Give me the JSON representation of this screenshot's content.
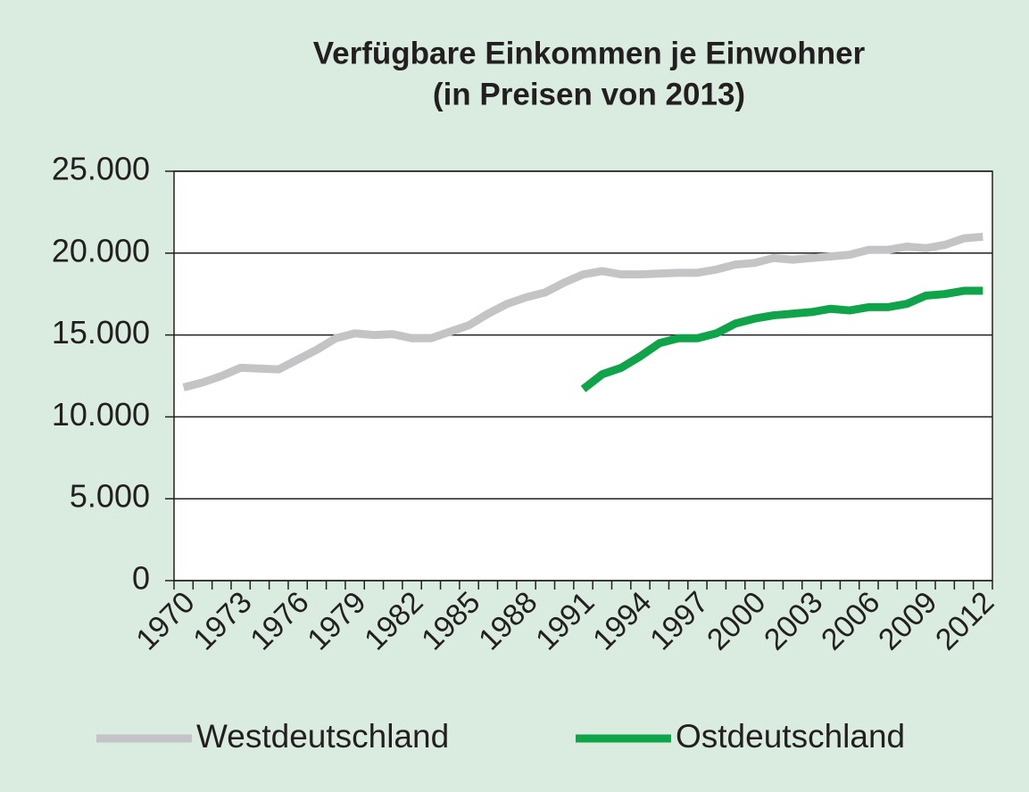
{
  "chart_data": {
    "type": "line",
    "title": "Verfügbare Einkommen je Einwohner",
    "subtitle": "(in Preisen von 2013)",
    "categories": [
      "1970",
      null,
      null,
      "1973",
      null,
      null,
      "1976",
      null,
      null,
      "1979",
      null,
      null,
      "1982",
      null,
      null,
      "1985",
      null,
      null,
      "1988",
      null,
      null,
      "1991",
      null,
      null,
      "1994",
      null,
      null,
      "1997",
      null,
      null,
      "2000",
      null,
      null,
      "2003",
      null,
      null,
      "2006",
      null,
      null,
      "2009",
      null,
      null,
      "2012"
    ],
    "series": [
      {
        "name": "Westdeutschland",
        "color": "#c4c4c6",
        "values": [
          11800,
          12100,
          12500,
          13000,
          12950,
          12900,
          13500,
          14100,
          14800,
          15100,
          15000,
          15050,
          14800,
          14800,
          15200,
          15600,
          16300,
          16900,
          17300,
          17600,
          18200,
          18700,
          18900,
          18700,
          18700,
          18750,
          18800,
          18800,
          19000,
          19300,
          19400,
          19700,
          19600,
          19700,
          19800,
          19900,
          20200,
          20200,
          20400,
          20300,
          20500,
          20900,
          21000
        ]
      },
      {
        "name": "Ostdeutschland",
        "color": "#0fa34a",
        "values": [
          null,
          null,
          null,
          null,
          null,
          null,
          null,
          null,
          null,
          null,
          null,
          null,
          null,
          null,
          null,
          null,
          null,
          null,
          null,
          null,
          null,
          11700,
          12600,
          13000,
          13700,
          14500,
          14800,
          14800,
          15100,
          15700,
          16000,
          16200,
          16300,
          16400,
          16600,
          16500,
          16700,
          16700,
          16900,
          17400,
          17500,
          17700,
          17700
        ]
      }
    ],
    "ylim": [
      0,
      25000
    ],
    "yticks": [
      0,
      {
        "value": 5000,
        "label": "5.000"
      },
      {
        "value": 10000,
        "label": "10.000"
      },
      {
        "value": 15000,
        "label": "15.000"
      },
      {
        "value": 20000,
        "label": "20.000"
      },
      {
        "value": 25000,
        "label": "25.000"
      }
    ],
    "grid": true,
    "legend": "bottom"
  }
}
